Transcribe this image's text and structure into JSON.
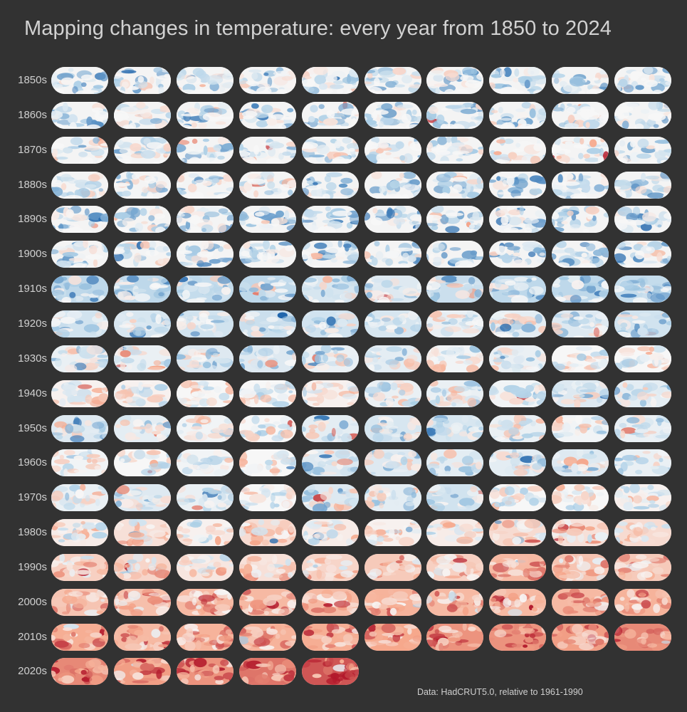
{
  "title": "Mapping changes in temperature: every year from 1850 to 2024",
  "source": "Data: HadCRUT5.0, relative to 1961-1990",
  "chart_data": {
    "type": "heatmap",
    "title": "Mapping changes in temperature: every year from 1850 to 2024",
    "row_labels": [
      "1850s",
      "1860s",
      "1870s",
      "1880s",
      "1890s",
      "1900s",
      "1910s",
      "1920s",
      "1930s",
      "1940s",
      "1950s",
      "1960s",
      "1970s",
      "1980s",
      "1990s",
      "2000s",
      "2010s",
      "2020s"
    ],
    "columns_per_row": 10,
    "first_year": 1850,
    "last_year": 2024,
    "baseline": "1961-1990",
    "colormap": {
      "cold": "#2166ac",
      "neutral": "#f7f7f7",
      "warm": "#b2182b"
    },
    "mean_anomaly_by_row": [
      [
        -0.4,
        -0.35,
        -0.3,
        -0.35,
        -0.3,
        -0.25,
        -0.3,
        -0.35,
        -0.35,
        -0.35
      ],
      [
        -0.35,
        -0.3,
        -0.4,
        -0.4,
        -0.35,
        -0.35,
        -0.35,
        -0.25,
        -0.2,
        -0.3
      ],
      [
        -0.1,
        -0.25,
        -0.3,
        -0.3,
        -0.1,
        -0.2,
        -0.3,
        0.05,
        0.05,
        -0.2
      ],
      [
        -0.25,
        -0.2,
        -0.25,
        -0.3,
        -0.35,
        -0.4,
        -0.3,
        -0.4,
        -0.4,
        -0.35
      ],
      [
        -0.4,
        -0.3,
        -0.4,
        -0.4,
        -0.4,
        -0.3,
        -0.3,
        -0.35,
        -0.3,
        -0.35
      ],
      [
        -0.3,
        -0.25,
        -0.4,
        -0.45,
        -0.45,
        -0.4,
        -0.35,
        -0.5,
        -0.45,
        -0.4
      ],
      [
        -0.45,
        -0.45,
        -0.4,
        -0.45,
        -0.25,
        -0.2,
        -0.35,
        -0.45,
        -0.45,
        -0.4
      ],
      [
        -0.3,
        -0.25,
        -0.3,
        -0.35,
        -0.3,
        -0.25,
        -0.1,
        -0.15,
        -0.2,
        -0.3
      ],
      [
        -0.1,
        -0.1,
        -0.2,
        -0.2,
        -0.1,
        -0.15,
        -0.05,
        -0.1,
        0.0,
        0.0
      ],
      [
        0.05,
        0.05,
        0.0,
        0.0,
        0.05,
        -0.1,
        -0.1,
        -0.05,
        -0.2,
        -0.15
      ],
      [
        -0.2,
        -0.15,
        -0.05,
        0.0,
        -0.15,
        -0.25,
        -0.25,
        -0.1,
        -0.05,
        -0.1
      ],
      [
        -0.05,
        0.0,
        -0.05,
        0.0,
        -0.2,
        -0.2,
        -0.15,
        -0.15,
        -0.2,
        -0.1
      ],
      [
        -0.1,
        -0.2,
        -0.1,
        0.0,
        -0.2,
        -0.15,
        -0.3,
        0.0,
        0.0,
        0.05
      ],
      [
        0.1,
        0.2,
        0.05,
        0.25,
        0.1,
        0.05,
        0.1,
        0.25,
        0.2,
        0.25
      ],
      [
        0.35,
        0.3,
        0.15,
        0.2,
        0.3,
        0.4,
        0.35,
        0.55,
        0.45,
        0.4
      ],
      [
        0.45,
        0.5,
        0.55,
        0.55,
        0.55,
        0.6,
        0.55,
        0.55,
        0.55,
        0.6
      ],
      [
        0.65,
        0.55,
        0.6,
        0.6,
        0.65,
        0.7,
        0.8,
        0.8,
        0.75,
        0.85
      ],
      [
        0.85,
        0.75,
        0.8,
        0.95,
        1.1
      ]
    ]
  }
}
